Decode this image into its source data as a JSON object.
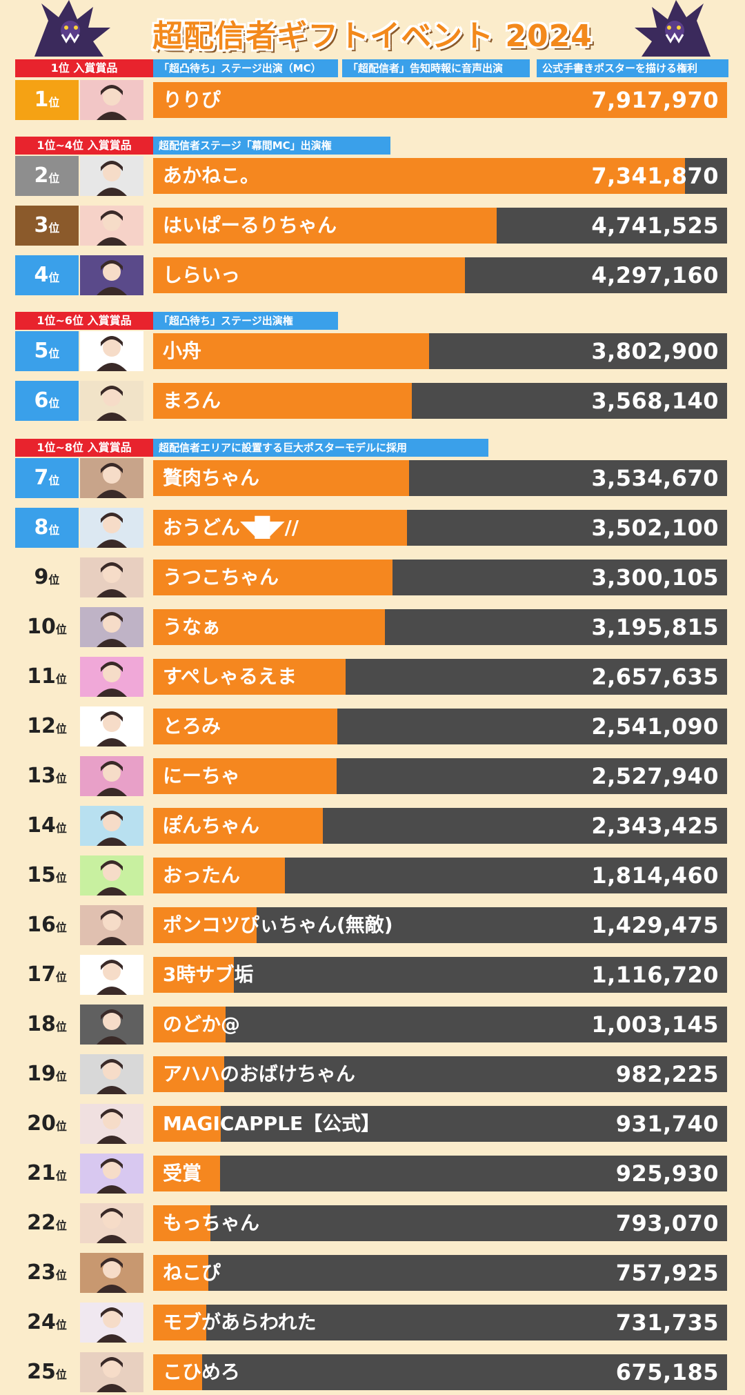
{
  "title": "超配信者ギフトイベント 2024",
  "rank_suffix": "位",
  "tiers": [
    {
      "label": "1位 入賞賞品",
      "prizes": [
        "「超凸待ち」ステージ出演（MC）",
        "「超配信者」告知時報に音声出演",
        "公式手書きポスターを描ける権利"
      ]
    },
    {
      "label": "1位~4位 入賞賞品",
      "prizes": [
        "超配信者ステージ「幕間MC」出演権"
      ]
    },
    {
      "label": "1位~6位 入賞賞品",
      "prizes": [
        "「超凸待ち」ステージ出演権"
      ]
    },
    {
      "label": "1位~8位 入賞賞品",
      "prizes": [
        "超配信者エリアに設置する巨大ポスターモデルに採用"
      ]
    }
  ],
  "colors": {
    "bar_fill": "#f5871f",
    "bar_track": "#4b4b4b",
    "rank1": "#f5a214",
    "rank2": "#8e8e8e",
    "rank3": "#8b5a2b",
    "rank_blue": "#3aa0ea",
    "tier_label": "#e8232d"
  },
  "chart_data": {
    "type": "bar",
    "orientation": "horizontal",
    "xlim": [
      0,
      7917970
    ],
    "categories": [
      "りりぴ",
      "あかねこ。",
      "はいぱーるりちゃん",
      "しらいっ",
      "小舟",
      "まろん",
      "贅肉ちゃん",
      "おうどん◥█◤//",
      "うつこちゃん",
      "うなぁ",
      "すぺしゃるえま",
      "とろみ",
      "にーちゃ",
      "ぽんちゃん",
      "おったん",
      "ポンコツぴぃちゃん(無敵)",
      "3時サブ垢",
      "のどか@",
      "アハハのおばけちゃん",
      "MAGICAPPLE【公式】",
      "受賞",
      "もっちゃん",
      "ねこぴ",
      "モブがあらわれた",
      "こひめろ"
    ],
    "ranks": [
      1,
      2,
      3,
      4,
      5,
      6,
      7,
      8,
      9,
      10,
      11,
      12,
      13,
      14,
      15,
      16,
      17,
      18,
      19,
      20,
      21,
      22,
      23,
      24,
      25
    ],
    "values": [
      7917970,
      7341870,
      4741525,
      4297160,
      3802900,
      3568140,
      3534670,
      3502100,
      3300105,
      3195815,
      2657635,
      2541090,
      2527940,
      2343425,
      1814460,
      1429475,
      1116720,
      1003145,
      982225,
      931740,
      925930,
      793070,
      757925,
      731735,
      675185
    ],
    "labels": [
      "7,917,970",
      "7,341,870",
      "4,741,525",
      "4,297,160",
      "3,802,900",
      "3,568,140",
      "3,534,670",
      "3,502,100",
      "3,300,105",
      "3,195,815",
      "2,657,635",
      "2,541,090",
      "2,527,940",
      "2,343,425",
      "1,814,460",
      "1,429,475",
      "1,116,720",
      "1,003,145",
      "982,225",
      "931,740",
      "925,930",
      "793,070",
      "757,925",
      "731,735",
      "675,185"
    ]
  }
}
